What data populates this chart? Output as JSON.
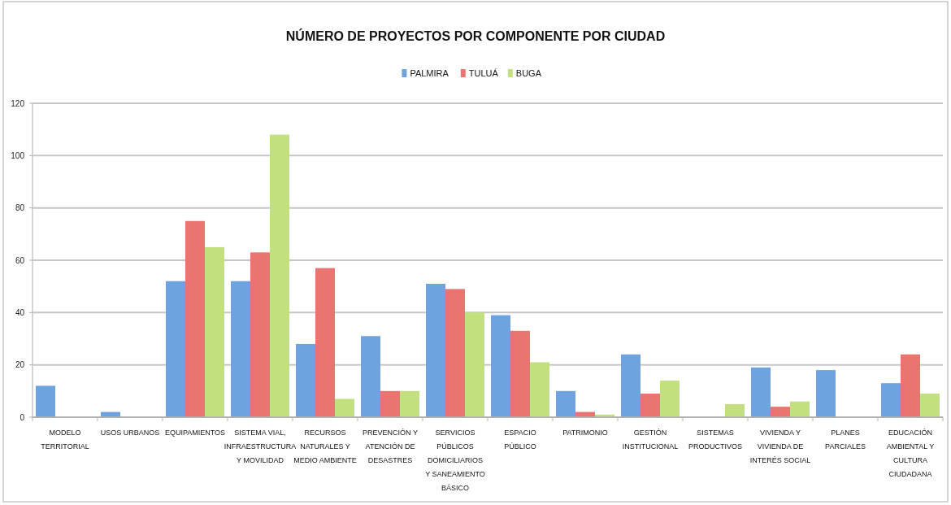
{
  "chart_data": {
    "type": "bar",
    "title": "NÚMERO DE PROYECTOS POR COMPONENTE POR CIUDAD",
    "categories": [
      "MODELO TERRITORIAL",
      "USOS URBANOS",
      "EQUIPAMIENTOS",
      "SISTEMA VIAL, INFRAESTRUCTURA Y MOVILIDAD",
      "RECURSOS NATURALES Y MEDIO AMBIENTE",
      "PREVENCIÓN Y ATENCIÓN DE DESASTRES",
      "SERVICIOS PÚBLICOS DOMICILIARIOS Y SANEAMIENTO BÁSICO",
      "ESPACIO PÚBLICO",
      "PATRIMONIO",
      "GESTIÓN INSTITUCIONAL",
      "SISTEMAS PRODUCTIVOS",
      "VIVIENDA Y VIVIENDA DE INTERÉS SOCIAL",
      "PLANES PARCIALES",
      "EDUCACIÓN AMBIENTAL Y CULTURA CIUDADANA"
    ],
    "series": [
      {
        "name": "PALMIRA",
        "color": "#6fa3e0",
        "values": [
          12,
          2,
          52,
          52,
          28,
          31,
          51,
          39,
          10,
          24,
          0,
          19,
          18,
          13
        ]
      },
      {
        "name": "TULUÁ",
        "color": "#ea7570",
        "values": [
          0,
          0,
          75,
          63,
          57,
          10,
          49,
          33,
          2,
          9,
          0,
          4,
          0,
          24
        ]
      },
      {
        "name": "BUGA",
        "color": "#c2e07d",
        "values": [
          0,
          0,
          65,
          108,
          7,
          10,
          40,
          21,
          1,
          14,
          5,
          6,
          0,
          9
        ]
      }
    ],
    "ylim": [
      0,
      120
    ],
    "yticks": [
      0,
      20,
      40,
      60,
      80,
      100,
      120
    ],
    "grid": "y",
    "legend": "top"
  }
}
